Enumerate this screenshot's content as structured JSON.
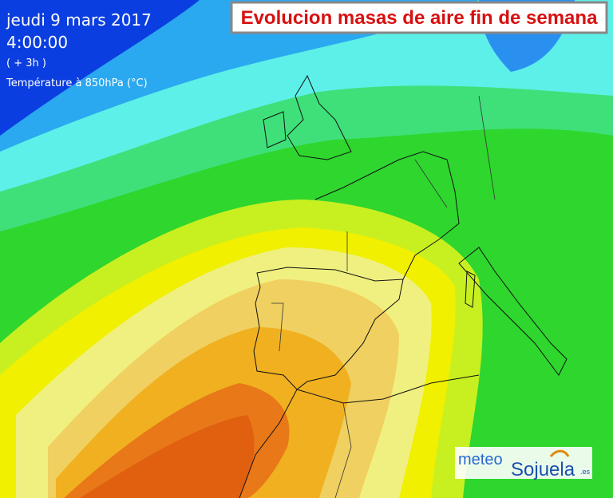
{
  "header": {
    "date": "jeudi 9 mars 2017",
    "time": "4:00:00",
    "offset": "( + 3h )",
    "variable": "Température à 850hPa (°C)"
  },
  "title": "Evolucion masas de aire fin de semana",
  "logo": {
    "prefix": "meteo",
    "name": "Sojuela",
    "suffix": ".es"
  }
}
